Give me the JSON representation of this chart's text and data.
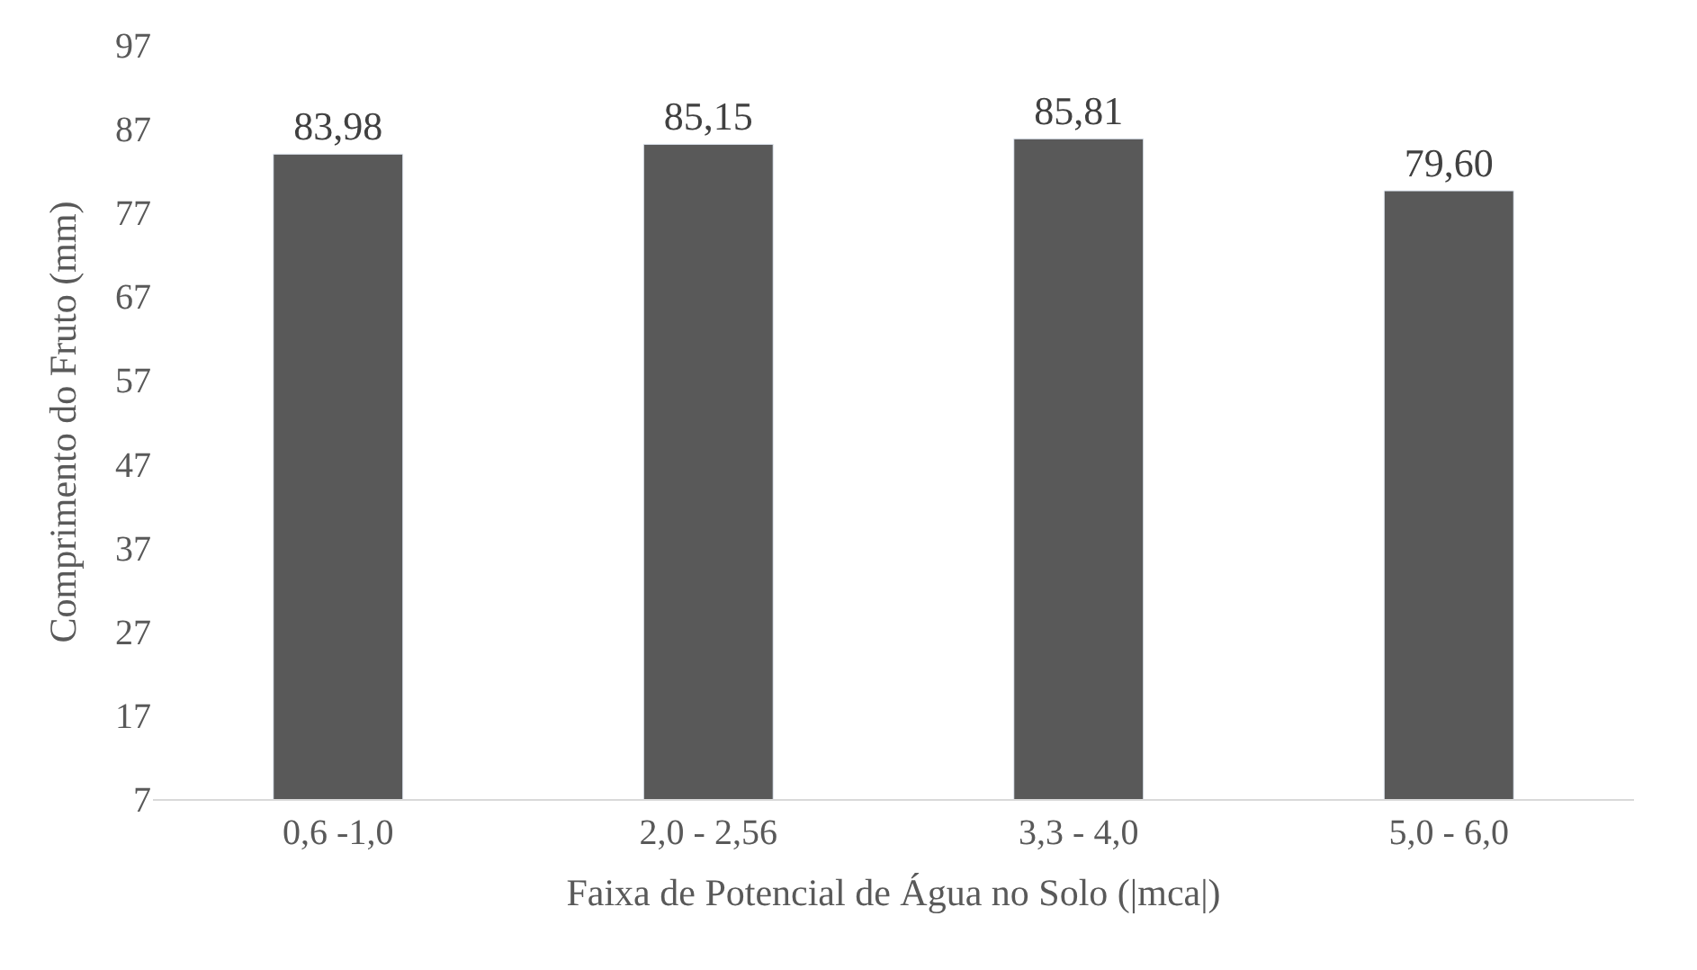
{
  "chart_data": {
    "type": "bar",
    "categories": [
      "0,6 -1,0",
      "2,0 - 2,56",
      "3,3 - 4,0",
      "5,0 - 6,0"
    ],
    "values": [
      83.98,
      85.15,
      85.81,
      79.6
    ],
    "value_labels": [
      "83,98",
      "85,15",
      "85,81",
      "79,60"
    ],
    "color": "#595959",
    "xlabel": "Faixa de Potencial de Água no Solo (|mca|)",
    "ylabel": "Comprimento do Fruto (mm)",
    "ylim": [
      7,
      97
    ],
    "yticks": [
      7,
      17,
      27,
      37,
      47,
      57,
      67,
      77,
      87,
      97
    ],
    "legend": false
  }
}
